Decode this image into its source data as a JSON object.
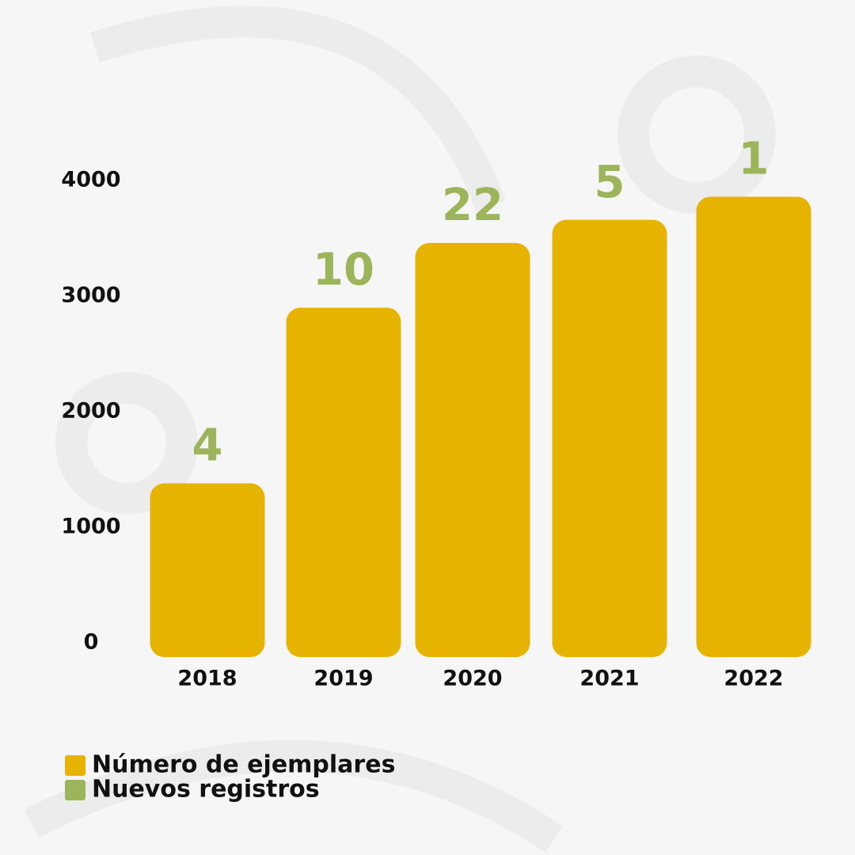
{
  "chart_data": {
    "type": "bar",
    "categories": [
      "2018",
      "2019",
      "2020",
      "2021",
      "2022"
    ],
    "series": [
      {
        "name": "Número de ejemplares",
        "color": "#e6b400",
        "values": [
          1380,
          2900,
          3460,
          3660,
          3860
        ]
      },
      {
        "name": "Nuevos registros",
        "color": "#9cb55a",
        "values": [
          4,
          10,
          22,
          5,
          1
        ]
      }
    ],
    "ylim": [
      0,
      4000
    ],
    "yticks": [
      0,
      1000,
      2000,
      3000,
      4000
    ],
    "grid": false
  }
}
